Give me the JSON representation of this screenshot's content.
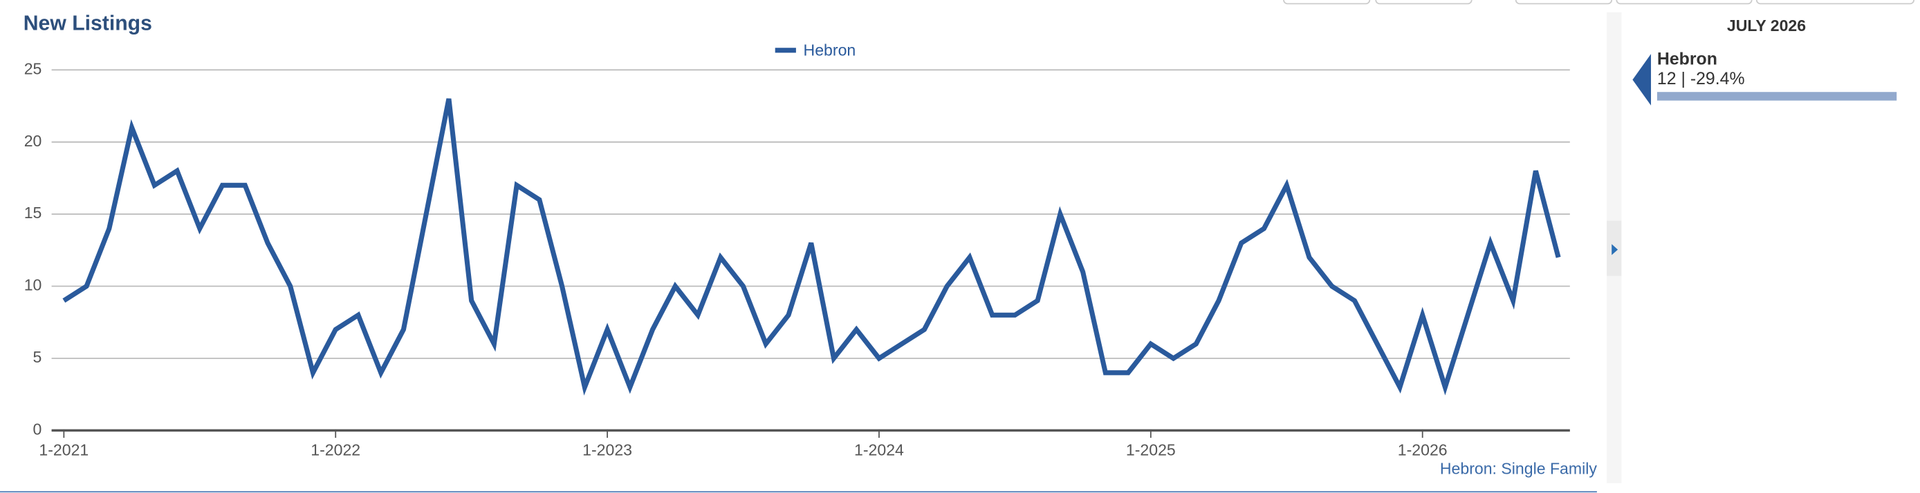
{
  "chart_data": {
    "type": "line",
    "title": "New Listings",
    "categories": [
      "1-2021",
      null,
      null,
      null,
      null,
      null,
      null,
      null,
      null,
      null,
      null,
      null,
      "1-2022",
      null,
      null,
      null,
      null,
      null,
      null,
      null,
      null,
      null,
      null,
      null,
      "1-2023",
      null,
      null,
      null,
      null,
      null,
      null,
      null,
      null,
      null,
      null,
      null,
      "1-2024",
      null,
      null,
      null,
      null,
      null,
      null,
      null,
      null,
      null,
      null,
      null,
      "1-2025",
      null,
      null,
      null,
      null,
      null,
      null,
      null,
      null,
      null,
      null,
      null,
      "1-2026",
      null,
      null,
      null,
      null,
      null,
      null
    ],
    "series": [
      {
        "name": "Hebron",
        "color": "#2a5a9c",
        "values": [
          9,
          10,
          14,
          21,
          17,
          18,
          14,
          17,
          17,
          13,
          10,
          4,
          7,
          8,
          4,
          7,
          15,
          23,
          9,
          6,
          17,
          16,
          10,
          3,
          7,
          3,
          7,
          10,
          8,
          12,
          10,
          6,
          8,
          13,
          5,
          7,
          5,
          6,
          7,
          10,
          12,
          8,
          8,
          9,
          15,
          11,
          4,
          4,
          6,
          5,
          6,
          9,
          13,
          14,
          17,
          12,
          10,
          9,
          6,
          3,
          8,
          3,
          8,
          13,
          9,
          18,
          12
        ]
      }
    ],
    "ylim": [
      0,
      25
    ],
    "yticks": [
      0,
      5,
      10,
      15,
      20,
      25
    ],
    "grid": true,
    "source": "Hebron: Single Family"
  },
  "panel": {
    "date": "JULY 2026",
    "name": "Hebron",
    "text": "12 | -29.4%"
  }
}
